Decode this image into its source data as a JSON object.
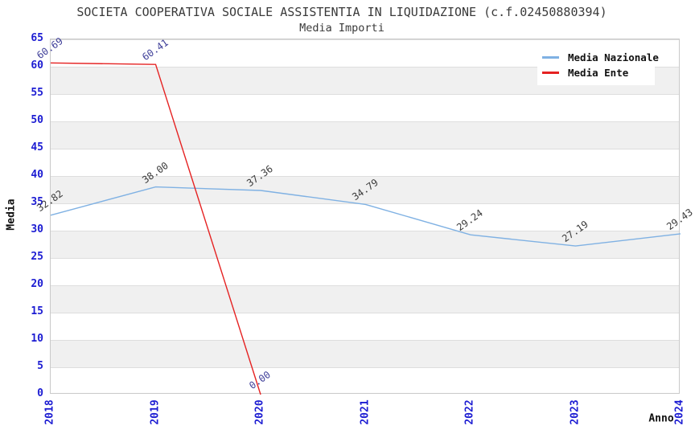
{
  "title": "SOCIETA COOPERATIVA SOCIALE ASSISTENTIA IN LIQUIDAZIONE (c.f.02450880394)",
  "subtitle": "Media Importi",
  "chart_data": {
    "type": "line",
    "x": [
      "2018",
      "2019",
      "2020",
      "2021",
      "2022",
      "2023",
      "2024"
    ],
    "series": [
      {
        "name": "Media Nazionale",
        "color": "#7fb1e3",
        "label_color": "#3c3c3c",
        "values": [
          32.82,
          38.0,
          37.36,
          34.79,
          29.24,
          27.19,
          29.43
        ]
      },
      {
        "name": "Media Ente",
        "color": "#e52222",
        "label_color": "#3f3f99",
        "values": [
          60.69,
          60.41,
          0.0,
          null,
          null,
          null,
          null
        ]
      }
    ],
    "xlabel": "Anno",
    "ylabel": "Media",
    "ylim": [
      0,
      65
    ],
    "ytick_step": 5,
    "grid": true,
    "legend_position": "top-right",
    "point_label_decimals": 2
  },
  "colors": {
    "tick_label": "#1c1cd2",
    "title_text": "#3a3a3a",
    "axis_label_text": "#111111",
    "band_gray": "#f0f0f0",
    "grid_line": "#dedede",
    "plot_border": "#c9c9c9",
    "legend_bg": "#ffffff"
  }
}
